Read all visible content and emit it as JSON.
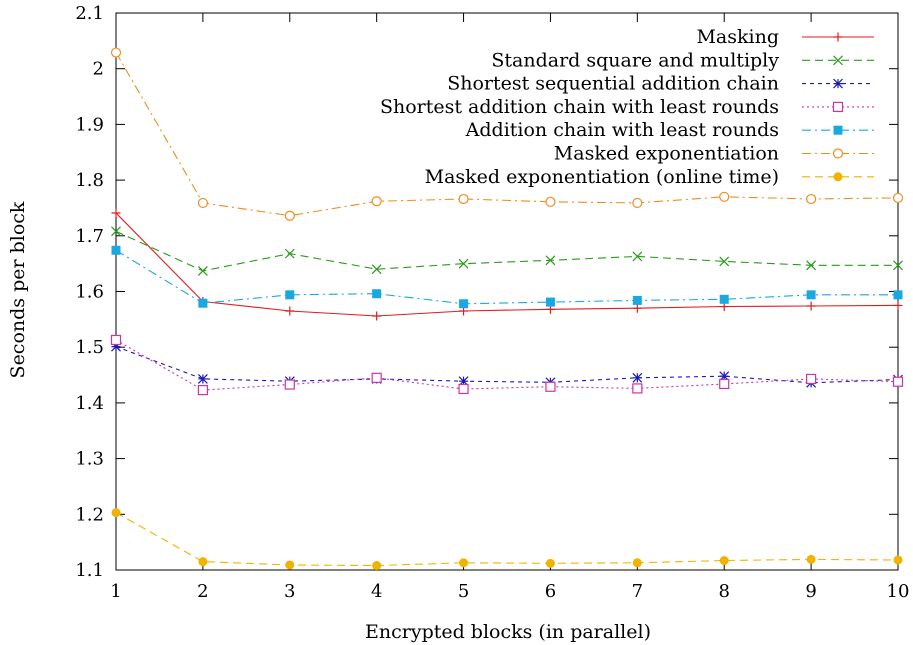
{
  "chart_data": {
    "type": "line",
    "title": "",
    "xlabel": "Encrypted blocks (in parallel)",
    "ylabel": "Seconds per block",
    "xlim": [
      1,
      10
    ],
    "ylim": [
      1.1,
      2.1
    ],
    "xticks": [
      "1",
      "2",
      "3",
      "4",
      "5",
      "6",
      "7",
      "8",
      "9",
      "10"
    ],
    "yticks": [
      "1.1",
      "1.2",
      "1.3",
      "1.4",
      "1.5",
      "1.6",
      "1.7",
      "1.8",
      "1.9",
      "2",
      "2.1"
    ],
    "grid": false,
    "legend_position": "top-right",
    "x": [
      1,
      2,
      3,
      4,
      5,
      6,
      7,
      8,
      9,
      10
    ],
    "series": [
      {
        "name": "Masking",
        "color": "#e41a1c",
        "dash": "solid",
        "marker": "plus",
        "values": [
          1.741,
          1.582,
          1.565,
          1.556,
          1.565,
          1.568,
          1.57,
          1.573,
          1.574,
          1.575
        ]
      },
      {
        "name": "Standard square and multiply",
        "color": "#2a9a1a",
        "dash": "dashed",
        "marker": "cross",
        "values": [
          1.708,
          1.637,
          1.668,
          1.64,
          1.65,
          1.656,
          1.663,
          1.654,
          1.647,
          1.647
        ]
      },
      {
        "name": "Shortest sequential addition chain",
        "color": "#1a1ab4",
        "dash": "dotted-fine",
        "marker": "star",
        "values": [
          1.501,
          1.443,
          1.439,
          1.443,
          1.439,
          1.437,
          1.445,
          1.448,
          1.436,
          1.442
        ]
      },
      {
        "name": "Shortest addition chain with least rounds",
        "color": "#cc33a8",
        "dash": "dotted",
        "marker": "open-square",
        "values": [
          1.513,
          1.423,
          1.433,
          1.445,
          1.425,
          1.429,
          1.426,
          1.434,
          1.443,
          1.438
        ]
      },
      {
        "name": "Addition chain with least rounds",
        "color": "#1aa8e0",
        "dash": "dash-dot",
        "marker": "filled-square",
        "values": [
          1.674,
          1.579,
          1.594,
          1.596,
          1.578,
          1.581,
          1.584,
          1.586,
          1.594,
          1.594
        ]
      },
      {
        "name": "Masked exponentiation",
        "color": "#f08c1e",
        "dash": "dash-dot",
        "marker": "open-circle",
        "values": [
          2.029,
          1.759,
          1.736,
          1.762,
          1.766,
          1.761,
          1.759,
          1.77,
          1.766,
          1.768
        ]
      },
      {
        "name": "Masked exponentiation (online time)",
        "color": "#f0b400",
        "dash": "dashed",
        "marker": "filled-circle",
        "values": [
          1.203,
          1.115,
          1.109,
          1.108,
          1.113,
          1.112,
          1.113,
          1.117,
          1.119,
          1.118
        ]
      }
    ]
  }
}
